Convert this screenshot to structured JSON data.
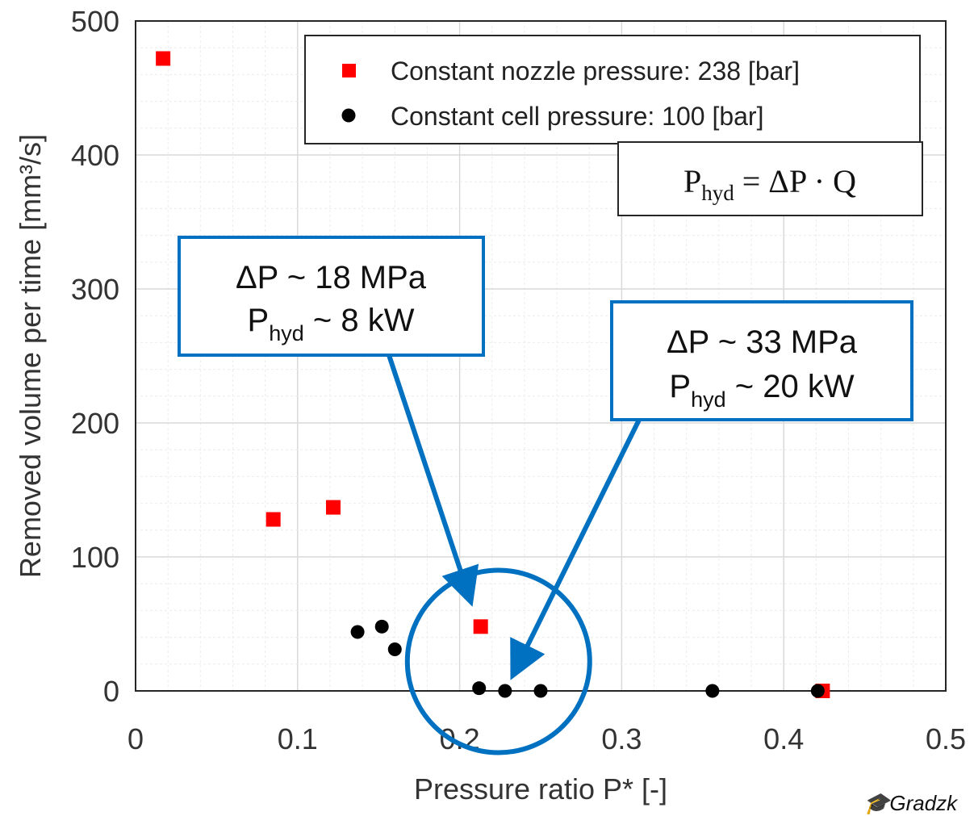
{
  "chart_data": {
    "type": "scatter",
    "xlabel": "Pressure ratio P* [-]",
    "ylabel": "Removed volume per time [mm³/s]",
    "xlim": [
      0,
      0.5
    ],
    "ylim": [
      0,
      500
    ],
    "x_ticks": [
      "0",
      "0.1",
      "0.2",
      "0.3",
      "0.4",
      "0.5"
    ],
    "y_ticks": [
      "0",
      "100",
      "200",
      "300",
      "400",
      "500"
    ],
    "grid": true,
    "minor_grid": true,
    "legend_position": "top-right",
    "series": [
      {
        "name": "Constant nozzle pressure: 238 [bar]",
        "marker": "square",
        "color": "#ff0000",
        "points": [
          {
            "x": 0.017,
            "y": 472
          },
          {
            "x": 0.085,
            "y": 128
          },
          {
            "x": 0.122,
            "y": 137
          },
          {
            "x": 0.213,
            "y": 48
          },
          {
            "x": 0.424,
            "y": 0
          }
        ]
      },
      {
        "name": "Constant cell pressure: 100 [bar]",
        "marker": "circle",
        "color": "#000000",
        "points": [
          {
            "x": 0.137,
            "y": 44
          },
          {
            "x": 0.152,
            "y": 48
          },
          {
            "x": 0.16,
            "y": 31
          },
          {
            "x": 0.212,
            "y": 2
          },
          {
            "x": 0.228,
            "y": 0
          },
          {
            "x": 0.25,
            "y": 0
          },
          {
            "x": 0.356,
            "y": 0
          },
          {
            "x": 0.421,
            "y": 0
          }
        ]
      }
    ],
    "formula": {
      "lhs": "P",
      "lhs_sub": "hyd",
      "rhs": "= ΔP · Q"
    },
    "annotations": [
      {
        "line1": "ΔP ~ 18 MPa",
        "line2_main": "P",
        "line2_sub": "hyd",
        "line2_rest": " ~ 8 kW",
        "points_to": {
          "x": 0.213,
          "y": 48
        }
      },
      {
        "line1": "ΔP ~ 33 MPa",
        "line2_main": "P",
        "line2_sub": "hyd",
        "line2_rest": " ~ 20 kW",
        "points_to": {
          "x": 0.228,
          "y": 0
        }
      }
    ],
    "highlight_circle_center": {
      "x": 0.224,
      "y": 22
    },
    "colors": {
      "callout": "#0070c0",
      "nozzle": "#ff0000",
      "cell": "#000000"
    }
  },
  "watermark": "Gradzk"
}
